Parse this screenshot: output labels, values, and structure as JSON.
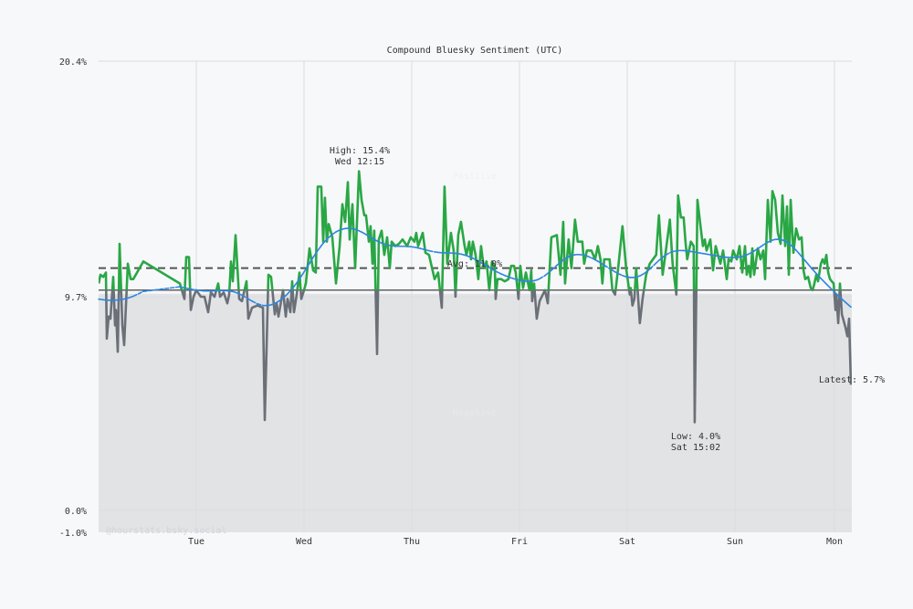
{
  "chart_data": {
    "type": "line",
    "title": "Compound Bluesky Sentiment (UTC)",
    "xlabel": "",
    "ylabel": "",
    "ylim": [
      -1.0,
      20.4
    ],
    "y_ticks": [
      "20.4%",
      "9.7%",
      "0.0%",
      "-1.0%"
    ],
    "y_tick_values": [
      20.4,
      9.7,
      0.0,
      -1.0
    ],
    "x_ticks": [
      "Tue",
      "Wed",
      "Thu",
      "Fri",
      "Sat",
      "Sun",
      "Mon"
    ],
    "grid": true,
    "baseline": 10.0,
    "average": 11.0,
    "colors": {
      "above": "#2aa745",
      "below": "#6b7078",
      "trend": "#2f86e0",
      "average": "#555555",
      "baseline": "#444444",
      "shade": "#e2e3e5"
    },
    "annotations": {
      "high": {
        "line1": "High: 15.4%",
        "line2": "Wed 12:15",
        "x": "Wed 12:15",
        "y": 15.4
      },
      "low": {
        "line1": "Low: 4.0%",
        "line2": "Sat 15:02",
        "x": "Sat 15:02",
        "y": 4.0
      },
      "avg": "Avg: 11.0%",
      "latest": "Latest: 5.7%"
    },
    "zone_labels": {
      "positive": "Positive",
      "negative": "Negative"
    },
    "watermark": "@hourstats.bsky.social",
    "series": [
      {
        "points": [
          [
            "Mon 02:15",
            10.3
          ],
          [
            "Mon 02:39",
            10.7
          ],
          [
            "Mon 03:16",
            10.6
          ],
          [
            "Mon 03:52",
            10.8
          ],
          [
            "Mon 04:04",
            7.8
          ],
          [
            "Mon 04:29",
            8.8
          ],
          [
            "Mon 04:53",
            8.7
          ],
          [
            "Mon 05:30",
            10.6
          ],
          [
            "Mon 05:54",
            8.4
          ],
          [
            "Mon 06:06",
            9.1
          ],
          [
            "Mon 06:31",
            7.2
          ],
          [
            "Mon 06:55",
            12.1
          ],
          [
            "Mon 07:32",
            8.4
          ],
          [
            "Mon 07:56",
            7.5
          ],
          [
            "Mon 08:45",
            11.2
          ],
          [
            "Mon 09:22",
            10.5
          ],
          [
            "Mon 09:58",
            10.5
          ],
          [
            "Mon 12:12",
            11.3
          ],
          [
            "Mon 20:20",
            10.3
          ],
          [
            "Mon 21:21",
            9.6
          ],
          [
            "Mon 21:46",
            11.5
          ],
          [
            "Mon 22:22",
            11.5
          ],
          [
            "Mon 22:47",
            9.1
          ],
          [
            "Mon 23:23",
            9.7
          ],
          [
            "Tue 00:00",
            10.0
          ],
          [
            "Tue 01:01",
            9.7
          ],
          [
            "Tue 01:50",
            9.7
          ],
          [
            "Tue 02:39",
            9.0
          ],
          [
            "Tue 03:15",
            9.9
          ],
          [
            "Tue 04:04",
            9.7
          ],
          [
            "Tue 04:53",
            10.3
          ],
          [
            "Tue 05:17",
            9.7
          ],
          [
            "Tue 06:06",
            9.9
          ],
          [
            "Tue 06:55",
            9.4
          ],
          [
            "Tue 07:19",
            9.8
          ],
          [
            "Tue 07:44",
            11.3
          ],
          [
            "Tue 08:08",
            10.4
          ],
          [
            "Tue 08:45",
            12.5
          ],
          [
            "Tue 09:33",
            9.6
          ],
          [
            "Tue 10:10",
            9.5
          ],
          [
            "Tue 11:11",
            10.4
          ],
          [
            "Tue 11:36",
            8.7
          ],
          [
            "Tue 12:24",
            9.2
          ],
          [
            "Tue 13:37",
            9.3
          ],
          [
            "Tue 14:51",
            9.2
          ],
          [
            "Tue 15:15",
            4.1
          ],
          [
            "Tue 16:04",
            10.7
          ],
          [
            "Tue 16:40",
            10.6
          ],
          [
            "Tue 17:29",
            8.9
          ],
          [
            "Tue 17:54",
            9.4
          ],
          [
            "Tue 18:18",
            8.8
          ],
          [
            "Tue 19:19",
            10.0
          ],
          [
            "Tue 19:56",
            8.8
          ],
          [
            "Tue 20:20",
            9.6
          ],
          [
            "Tue 20:57",
            9.0
          ],
          [
            "Tue 21:21",
            10.4
          ],
          [
            "Tue 21:46",
            9.0
          ],
          [
            "Tue 22:22",
            9.8
          ],
          [
            "Tue 22:59",
            10.8
          ],
          [
            "Tue 23:23",
            9.6
          ],
          [
            "Wed 00:00",
            10.0
          ],
          [
            "Wed 00:24",
            10.3
          ],
          [
            "Wed 01:13",
            11.9
          ],
          [
            "Wed 02:02",
            10.9
          ],
          [
            "Wed 02:38",
            10.8
          ],
          [
            "Wed 03:03",
            14.7
          ],
          [
            "Wed 03:51",
            14.7
          ],
          [
            "Wed 04:16",
            12.2
          ],
          [
            "Wed 04:40",
            14.2
          ],
          [
            "Wed 05:05",
            12.2
          ],
          [
            "Wed 05:29",
            13.0
          ],
          [
            "Wed 06:18",
            12.4
          ],
          [
            "Wed 07:07",
            10.3
          ],
          [
            "Wed 07:56",
            12.0
          ],
          [
            "Wed 08:32",
            13.9
          ],
          [
            "Wed 09:09",
            13.1
          ],
          [
            "Wed 09:46",
            14.9
          ],
          [
            "Wed 10:10",
            12.3
          ],
          [
            "Wed 10:47",
            13.9
          ],
          [
            "Wed 11:23",
            11.0
          ],
          [
            "Wed 12:15",
            15.4
          ],
          [
            "Wed 12:49",
            14.1
          ],
          [
            "Wed 13:25",
            13.4
          ],
          [
            "Wed 13:49",
            13.4
          ],
          [
            "Wed 14:26",
            12.2
          ],
          [
            "Wed 14:50",
            12.9
          ],
          [
            "Wed 15:15",
            11.2
          ],
          [
            "Wed 15:39",
            12.7
          ],
          [
            "Wed 16:16",
            7.1
          ],
          [
            "Wed 16:40",
            12.3
          ],
          [
            "Wed 17:17",
            12.7
          ],
          [
            "Wed 17:53",
            11.6
          ],
          [
            "Wed 18:30",
            12.4
          ],
          [
            "Wed 19:06",
            11.0
          ],
          [
            "Wed 19:31",
            12.2
          ],
          [
            "Wed 20:20",
            12.0
          ],
          [
            "Wed 21:08",
            12.1
          ],
          [
            "Wed 21:57",
            12.3
          ],
          [
            "Wed 22:58",
            12.0
          ],
          [
            "Wed 23:47",
            12.4
          ],
          [
            "Thu 00:36",
            12.2
          ],
          [
            "Thu 01:00",
            12.6
          ],
          [
            "Thu 01:25",
            12.0
          ],
          [
            "Thu 02:26",
            12.6
          ],
          [
            "Thu 03:03",
            11.7
          ],
          [
            "Thu 03:51",
            11.6
          ],
          [
            "Thu 05:05",
            10.5
          ],
          [
            "Thu 05:53",
            10.8
          ],
          [
            "Thu 06:42",
            9.2
          ],
          [
            "Thu 07:18",
            14.7
          ],
          [
            "Thu 07:55",
            11.2
          ],
          [
            "Thu 08:44",
            12.6
          ],
          [
            "Thu 09:20",
            11.8
          ],
          [
            "Thu 09:45",
            9.7
          ],
          [
            "Thu 10:21",
            12.5
          ],
          [
            "Thu 10:58",
            13.1
          ],
          [
            "Thu 11:47",
            12.0
          ],
          [
            "Thu 12:11",
            11.6
          ],
          [
            "Thu 12:48",
            12.2
          ],
          [
            "Thu 13:12",
            11.4
          ],
          [
            "Thu 13:37",
            12.2
          ],
          [
            "Thu 14:13",
            11.6
          ],
          [
            "Thu 14:50",
            10.5
          ],
          [
            "Thu 15:26",
            12.0
          ],
          [
            "Thu 16:03",
            11.0
          ],
          [
            "Thu 16:40",
            11.3
          ],
          [
            "Thu 17:16",
            10.0
          ],
          [
            "Thu 17:53",
            11.3
          ],
          [
            "Thu 18:29",
            11.1
          ],
          [
            "Thu 18:42",
            9.6
          ],
          [
            "Thu 19:06",
            10.5
          ],
          [
            "Thu 19:55",
            10.5
          ],
          [
            "Thu 20:44",
            10.4
          ],
          [
            "Thu 21:32",
            10.5
          ],
          [
            "Thu 22:09",
            11.1
          ],
          [
            "Thu 22:46",
            11.1
          ],
          [
            "Thu 23:10",
            10.8
          ],
          [
            "Thu 23:47",
            9.6
          ],
          [
            "Fri 00:11",
            11.1
          ],
          [
            "Fri 00:48",
            10.1
          ],
          [
            "Fri 01:25",
            10.8
          ],
          [
            "Fri 02:13",
            10.0
          ],
          [
            "Fri 02:38",
            10.9
          ],
          [
            "Fri 02:50",
            9.5
          ],
          [
            "Fri 03:15",
            10.3
          ],
          [
            "Fri 03:51",
            8.7
          ],
          [
            "Fri 04:28",
            9.5
          ],
          [
            "Fri 05:41",
            10.0
          ],
          [
            "Fri 06:18",
            9.4
          ],
          [
            "Fri 07:06",
            12.4
          ],
          [
            "Fri 08:19",
            12.5
          ],
          [
            "Fri 09:08",
            10.7
          ],
          [
            "Fri 09:44",
            13.1
          ],
          [
            "Fri 10:09",
            10.3
          ],
          [
            "Fri 10:57",
            12.3
          ],
          [
            "Fri 11:34",
            11.0
          ],
          [
            "Fri 12:22",
            13.2
          ],
          [
            "Fri 12:58",
            12.2
          ],
          [
            "Fri 13:59",
            12.2
          ],
          [
            "Fri 14:24",
            11.2
          ],
          [
            "Fri 15:00",
            11.8
          ],
          [
            "Fri 16:01",
            11.8
          ],
          [
            "Fri 16:50",
            11.4
          ],
          [
            "Fri 17:27",
            12.0
          ],
          [
            "Fri 18:03",
            11.4
          ],
          [
            "Fri 18:28",
            10.3
          ],
          [
            "Fri 18:52",
            11.4
          ],
          [
            "Fri 20:05",
            11.4
          ],
          [
            "Fri 20:42",
            10.0
          ],
          [
            "Fri 21:18",
            9.8
          ],
          [
            "Fri 21:55",
            10.9
          ],
          [
            "Fri 22:56",
            12.9
          ],
          [
            "Fri 23:45",
            11.0
          ],
          [
            "Sat 00:34",
            9.8
          ],
          [
            "Sat 00:46",
            10.1
          ],
          [
            "Sat 01:10",
            9.3
          ],
          [
            "Sat 01:35",
            9.6
          ],
          [
            "Sat 01:59",
            11.0
          ],
          [
            "Sat 02:48",
            8.5
          ],
          [
            "Sat 03:25",
            9.6
          ],
          [
            "Sat 04:13",
            10.7
          ],
          [
            "Sat 05:02",
            11.2
          ],
          [
            "Sat 06:27",
            11.6
          ],
          [
            "Sat 07:04",
            13.4
          ],
          [
            "Sat 07:53",
            10.7
          ],
          [
            "Sat 08:29",
            11.6
          ],
          [
            "Sat 09:30",
            13.2
          ],
          [
            "Sat 10:07",
            11.2
          ],
          [
            "Sat 10:56",
            9.8
          ],
          [
            "Sat 11:20",
            14.3
          ],
          [
            "Sat 11:57",
            13.3
          ],
          [
            "Sat 12:34",
            13.3
          ],
          [
            "Sat 12:58",
            12.2
          ],
          [
            "Sat 13:22",
            11.4
          ],
          [
            "Sat 14:11",
            12.2
          ],
          [
            "Sat 14:48",
            12.0
          ],
          [
            "Sat 15:02",
            4.0
          ],
          [
            "Sat 15:39",
            14.1
          ],
          [
            "Sat 16:16",
            13.0
          ],
          [
            "Sat 16:52",
            12.0
          ],
          [
            "Sat 17:17",
            12.3
          ],
          [
            "Sat 17:41",
            11.8
          ],
          [
            "Sat 18:30",
            12.3
          ],
          [
            "Sat 19:07",
            10.9
          ],
          [
            "Sat 19:43",
            12.0
          ],
          [
            "Sat 20:20",
            11.5
          ],
          [
            "Sat 20:45",
            11.2
          ],
          [
            "Sat 21:21",
            11.8
          ],
          [
            "Sat 22:10",
            10.5
          ],
          [
            "Sat 22:35",
            11.4
          ],
          [
            "Sat 23:11",
            11.3
          ],
          [
            "Sat 23:36",
            11.8
          ],
          [
            "Sun 00:24",
            11.4
          ],
          [
            "Sun 01:01",
            12.0
          ],
          [
            "Sun 01:38",
            10.8
          ],
          [
            "Sun 02:14",
            12.0
          ],
          [
            "Sun 02:38",
            10.7
          ],
          [
            "Sun 03:03",
            11.1
          ],
          [
            "Sun 03:27",
            10.6
          ],
          [
            "Sun 03:52",
            11.9
          ],
          [
            "Sun 04:16",
            10.7
          ],
          [
            "Sun 05:05",
            11.9
          ],
          [
            "Sun 05:42",
            11.4
          ],
          [
            "Sun 06:18",
            11.8
          ],
          [
            "Sun 06:43",
            10.5
          ],
          [
            "Sun 07:19",
            14.1
          ],
          [
            "Sun 07:56",
            12.2
          ],
          [
            "Sun 08:20",
            14.5
          ],
          [
            "Sun 08:57",
            14.1
          ],
          [
            "Sun 09:34",
            12.6
          ],
          [
            "Sun 10:10",
            12.1
          ],
          [
            "Sun 10:35",
            14.3
          ],
          [
            "Sun 11:11",
            12.0
          ],
          [
            "Sun 11:36",
            13.8
          ],
          [
            "Sun 12:00",
            10.7
          ],
          [
            "Sun 12:25",
            14.1
          ],
          [
            "Sun 13:01",
            11.7
          ],
          [
            "Sun 13:38",
            12.8
          ],
          [
            "Sun 14:15",
            12.3
          ],
          [
            "Sun 14:51",
            12.4
          ],
          [
            "Sun 15:16",
            10.9
          ],
          [
            "Sun 15:40",
            10.5
          ],
          [
            "Sun 16:17",
            10.6
          ],
          [
            "Sun 16:53",
            10.1
          ],
          [
            "Sun 17:18",
            10.0
          ],
          [
            "Sun 17:42",
            10.3
          ],
          [
            "Sun 18:07",
            10.7
          ],
          [
            "Sun 18:31",
            10.4
          ],
          [
            "Sun 19:08",
            11.2
          ],
          [
            "Sun 19:32",
            11.4
          ],
          [
            "Sun 19:57",
            11.2
          ],
          [
            "Sun 20:21",
            11.6
          ],
          [
            "Sun 20:46",
            10.8
          ],
          [
            "Sun 21:10",
            10.5
          ],
          [
            "Sun 21:34",
            10.4
          ],
          [
            "Sun 21:59",
            10.3
          ],
          [
            "Sun 22:23",
            9.1
          ],
          [
            "Sun 22:36",
            9.8
          ],
          [
            "Sun 23:00",
            8.5
          ],
          [
            "Sun 23:24",
            10.3
          ],
          [
            "Sun 23:49",
            8.9
          ],
          [
            "Mon 00:13",
            8.6
          ],
          [
            "Mon 00:38",
            8.3
          ],
          [
            "Mon 01:02",
            7.9
          ],
          [
            "Mon 01:26",
            8.7
          ],
          [
            "Mon 01:50",
            5.7
          ]
        ]
      }
    ]
  }
}
